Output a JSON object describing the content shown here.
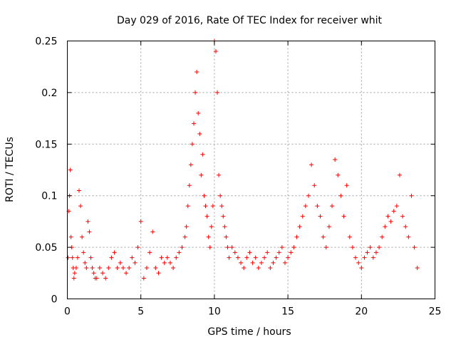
{
  "chart_data": {
    "type": "scatter",
    "title": "Day 029 of 2016, Rate Of TEC Index for receiver whit",
    "xlabel": "GPS time / hours",
    "ylabel": "ROTI / TECUs",
    "xlim": [
      0,
      25
    ],
    "ylim": [
      0,
      0.25
    ],
    "xticks": [
      0,
      5,
      10,
      15,
      20,
      25
    ],
    "xtick_labels": [
      "0",
      "5",
      "10",
      "15",
      "20",
      "25"
    ],
    "yticks": [
      0,
      0.05,
      0.1,
      0.15,
      0.2,
      0.25
    ],
    "ytick_labels": [
      "0",
      "0.05",
      "0.1",
      "0.15",
      "0.2",
      "0.25"
    ],
    "grid": true,
    "marker": "+",
    "color": "#ff0000",
    "series": [
      {
        "name": "ROTI",
        "x": [
          0.05,
          0.1,
          0.15,
          0.2,
          0.25,
          0.3,
          0.35,
          0.4,
          0.45,
          0.5,
          0.6,
          0.7,
          0.8,
          0.9,
          1.0,
          1.1,
          1.2,
          1.3,
          1.4,
          1.5,
          1.6,
          1.7,
          1.8,
          1.9,
          2.0,
          2.2,
          2.4,
          2.6,
          2.8,
          3.0,
          3.2,
          3.4,
          3.6,
          3.8,
          4.0,
          4.2,
          4.4,
          4.6,
          4.8,
          5.0,
          5.2,
          5.4,
          5.6,
          5.8,
          6.0,
          6.2,
          6.4,
          6.6,
          6.8,
          7.0,
          7.2,
          7.4,
          7.6,
          7.8,
          8.0,
          8.1,
          8.2,
          8.3,
          8.4,
          8.5,
          8.6,
          8.7,
          8.8,
          8.9,
          9.0,
          9.1,
          9.2,
          9.3,
          9.4,
          9.5,
          9.6,
          9.7,
          9.8,
          9.9,
          10.0,
          10.1,
          10.2,
          10.3,
          10.4,
          10.5,
          10.6,
          10.7,
          10.8,
          10.9,
          11.0,
          11.2,
          11.4,
          11.6,
          11.8,
          12.0,
          12.2,
          12.4,
          12.6,
          12.8,
          13.0,
          13.2,
          13.4,
          13.6,
          13.8,
          14.0,
          14.2,
          14.4,
          14.6,
          14.8,
          15.0,
          15.2,
          15.4,
          15.6,
          15.8,
          16.0,
          16.2,
          16.4,
          16.6,
          16.8,
          17.0,
          17.2,
          17.4,
          17.6,
          17.8,
          18.0,
          18.2,
          18.4,
          18.6,
          18.8,
          19.0,
          19.2,
          19.4,
          19.6,
          19.8,
          20.0,
          20.2,
          20.4,
          20.6,
          20.8,
          21.0,
          21.2,
          21.4,
          21.6,
          21.8,
          22.0,
          22.2,
          22.4,
          22.6,
          22.8,
          23.0,
          23.2,
          23.4,
          23.6,
          23.8
        ],
        "y": [
          0.04,
          0.085,
          0.1,
          0.125,
          0.06,
          0.05,
          0.04,
          0.03,
          0.02,
          0.025,
          0.03,
          0.04,
          0.105,
          0.09,
          0.06,
          0.045,
          0.035,
          0.03,
          0.075,
          0.065,
          0.04,
          0.03,
          0.025,
          0.02,
          0.02,
          0.03,
          0.025,
          0.02,
          0.03,
          0.04,
          0.045,
          0.03,
          0.035,
          0.03,
          0.025,
          0.03,
          0.04,
          0.035,
          0.05,
          0.075,
          0.02,
          0.03,
          0.045,
          0.065,
          0.03,
          0.025,
          0.04,
          0.035,
          0.04,
          0.035,
          0.03,
          0.04,
          0.045,
          0.05,
          0.06,
          0.07,
          0.09,
          0.11,
          0.13,
          0.15,
          0.17,
          0.2,
          0.22,
          0.18,
          0.16,
          0.12,
          0.14,
          0.1,
          0.09,
          0.08,
          0.06,
          0.05,
          0.07,
          0.09,
          0.25,
          0.24,
          0.2,
          0.12,
          0.1,
          0.09,
          0.08,
          0.07,
          0.06,
          0.05,
          0.04,
          0.05,
          0.045,
          0.04,
          0.035,
          0.03,
          0.04,
          0.045,
          0.035,
          0.04,
          0.03,
          0.035,
          0.04,
          0.045,
          0.03,
          0.035,
          0.04,
          0.045,
          0.05,
          0.035,
          0.04,
          0.045,
          0.05,
          0.06,
          0.07,
          0.08,
          0.09,
          0.1,
          0.13,
          0.11,
          0.09,
          0.08,
          0.06,
          0.05,
          0.07,
          0.09,
          0.135,
          0.12,
          0.1,
          0.08,
          0.11,
          0.06,
          0.05,
          0.04,
          0.035,
          0.03,
          0.04,
          0.045,
          0.05,
          0.04,
          0.045,
          0.05,
          0.06,
          0.07,
          0.08,
          0.075,
          0.085,
          0.09,
          0.12,
          0.08,
          0.07,
          0.06,
          0.1,
          0.05,
          0.03
        ]
      }
    ]
  }
}
